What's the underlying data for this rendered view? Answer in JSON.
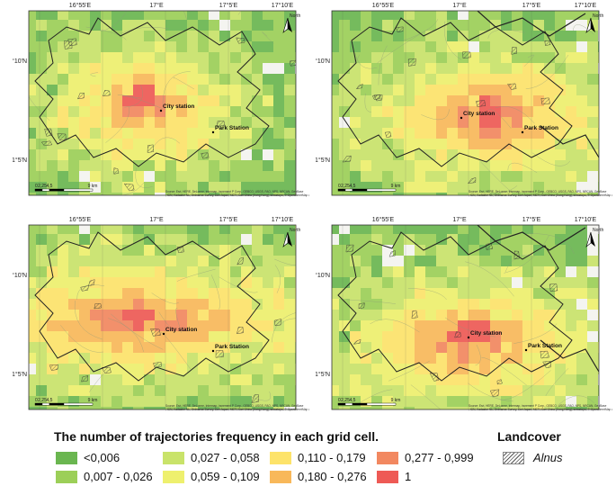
{
  "maps": [
    {
      "id": "tl",
      "lat_labels": [
        "51°10'N",
        "51°5'N"
      ],
      "lon_labels": [
        "16°55'E",
        "17°E",
        "17°5'E",
        "17°10'E"
      ],
      "stations": [
        "City station",
        "Park Station"
      ],
      "scale": [
        "0",
        "2,25",
        "4,5",
        "9 km"
      ]
    },
    {
      "id": "tr",
      "lat_labels": [
        "51°10'N",
        "51°5'N"
      ],
      "lon_labels": [
        "16°55'E",
        "17°E",
        "17°5'E",
        "17°10'E"
      ],
      "stations": [
        "City station",
        "Park Station"
      ],
      "scale": [
        "0",
        "2,25",
        "4,5",
        "9 km"
      ]
    },
    {
      "id": "bl",
      "lat_labels": [
        "51°10'N",
        "51°5'N"
      ],
      "lon_labels": [
        "16°55'E",
        "17°E",
        "17°5'E",
        "17°10'E"
      ],
      "stations": [
        "City station",
        "Park Station"
      ],
      "scale": [
        "0",
        "2,25",
        "4,5",
        "9 km"
      ]
    },
    {
      "id": "br",
      "lat_labels": [
        "51°10'N",
        "51°5'N"
      ],
      "lon_labels": [
        "16°55'E",
        "17°E",
        "17°5'E",
        "17°10'E"
      ],
      "stations": [
        "City station",
        "Park Station"
      ],
      "scale": [
        "0",
        "2,25",
        "4,5",
        "9 km"
      ]
    }
  ],
  "north_label": "North",
  "credit_text": "Source: Esri, HERE, DeLorme, Intermap, increment P Corp., GEBCO, USGS, FAO, NPS, NRCAN, GeoBase, IGN, Kadaster NL, Ordnance Survey, Esri Japan, METI, Esri China (Hong Kong), swisstopo, © OpenStreetMap contributors, and the GIS User Community",
  "legend": {
    "title": "The number of trajectories frequency in each grid cell.",
    "items": [
      {
        "label": "<0,006",
        "color": "#6ab650"
      },
      {
        "label": "0,007 - 0,026",
        "color": "#9ccf58"
      },
      {
        "label": "0,027 - 0,058",
        "color": "#c9e36a"
      },
      {
        "label": "0,059 - 0,109",
        "color": "#eef06e"
      },
      {
        "label": "0,110 - 0,179",
        "color": "#fde36a"
      },
      {
        "label": "0,180 - 0,276",
        "color": "#f8b85a"
      },
      {
        "label": "0,277 - 0,999",
        "color": "#f28860"
      },
      {
        "label": "1",
        "color": "#ee5a55"
      }
    ]
  },
  "landcover": {
    "title": "Landcover",
    "item": "Alnus"
  }
}
